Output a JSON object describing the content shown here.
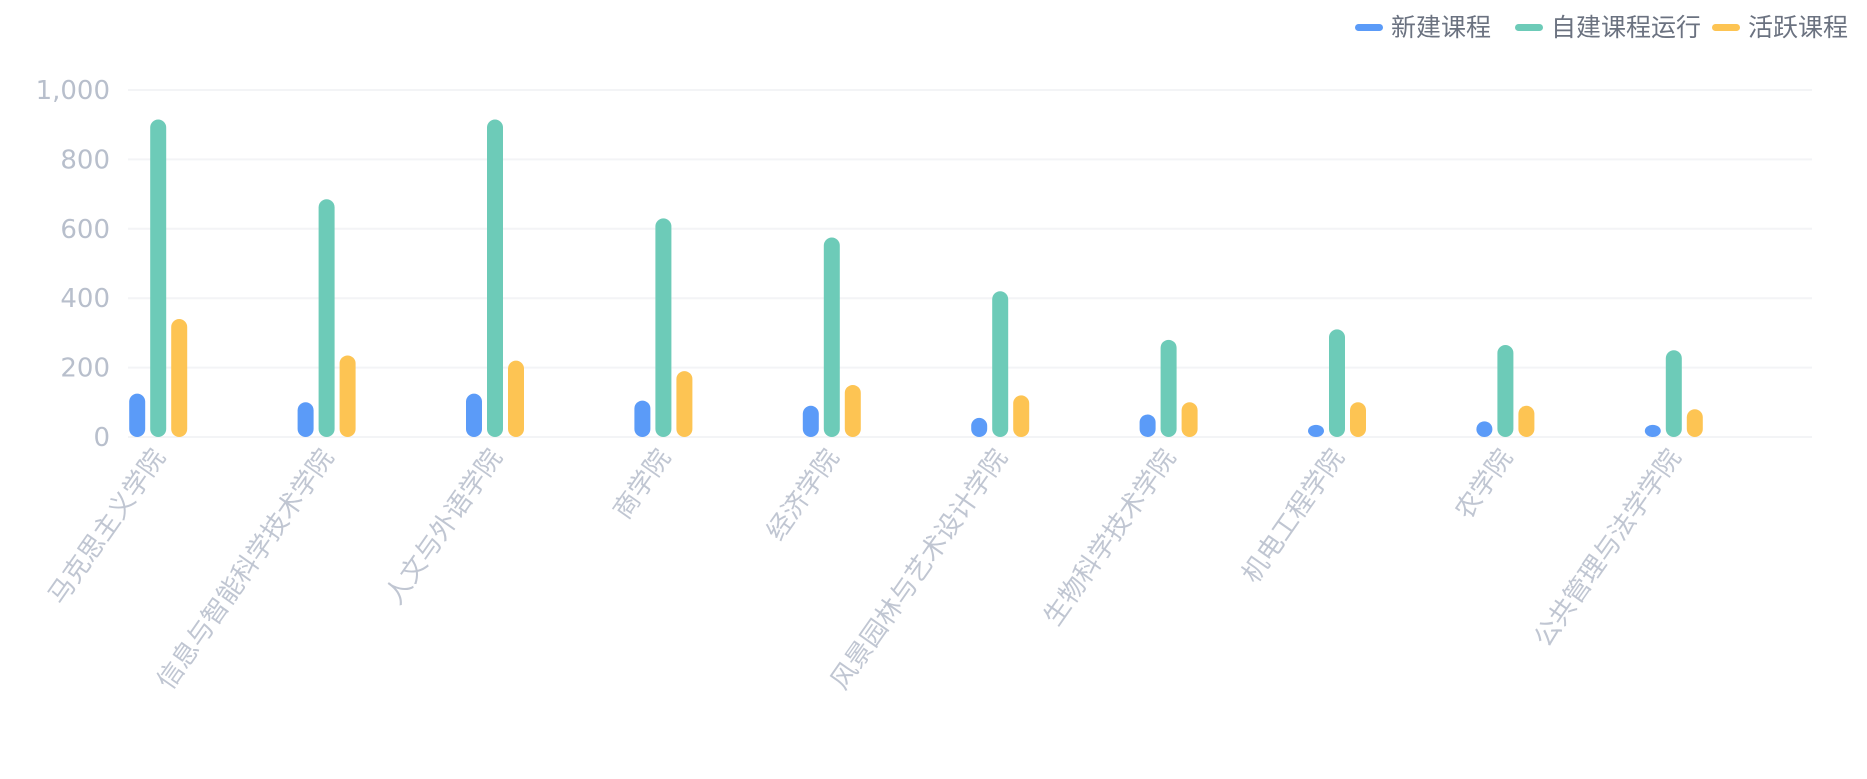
{
  "chart_data": {
    "type": "bar",
    "categories": [
      "马克思主义学院",
      "信息与智能科学技术学院",
      "人文与外语学院",
      "商学院",
      "经济学院",
      "风景园林与艺术设计学院",
      "生物科学技术学院",
      "机电工程学院",
      "农学院",
      "公共管理与法学学院"
    ],
    "series": [
      {
        "name": "新建课程",
        "color": "#5b9bf8",
        "values": [
          125,
          100,
          125,
          105,
          90,
          55,
          65,
          35,
          45,
          35
        ]
      },
      {
        "name": "自建课程运行",
        "color": "#6dcbb8",
        "values": [
          915,
          685,
          915,
          630,
          575,
          420,
          280,
          310,
          265,
          250
        ]
      },
      {
        "name": "活跃课程",
        "color": "#fdc453",
        "values": [
          340,
          235,
          220,
          190,
          150,
          120,
          100,
          100,
          90,
          80
        ]
      }
    ],
    "yticks": [
      "0",
      "200",
      "400",
      "600",
      "800",
      "1,000"
    ],
    "ylim": [
      0,
      1000
    ],
    "grid": true,
    "legend_position": "top-right"
  }
}
